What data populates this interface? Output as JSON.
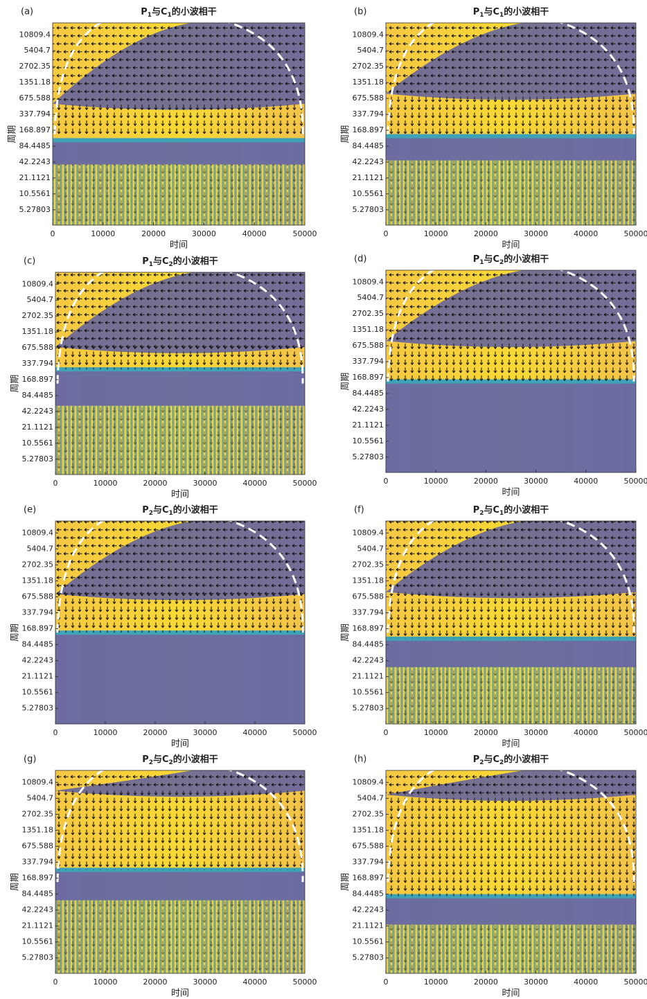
{
  "chart_data": [
    {
      "type": "wavelet_coherence",
      "panel_label": "(a)",
      "title": [
        "P",
        "1",
        "与C",
        "1",
        "的小波相干"
      ],
      "xlabel": "时间",
      "ylabel": "周期",
      "xlim": [
        0,
        50000
      ],
      "xticks": [
        0,
        10000,
        20000,
        30000,
        40000,
        50000
      ],
      "ylim": [
        2.7,
        18200
      ],
      "yscale": "log",
      "yticks": [
        10809.4,
        5404.7,
        2702.35,
        1351.18,
        675.588,
        337.794,
        168.897,
        84.4485,
        42.2243,
        21.1121,
        10.5561,
        5.27803
      ]
    },
    {
      "type": "wavelet_coherence",
      "panel_label": "(b)",
      "title": [
        "P",
        "1",
        "与C",
        "1",
        "的小波相干"
      ],
      "xlabel": "时间",
      "ylabel": "周期",
      "xlim": [
        0,
        50000
      ],
      "xticks": [
        0,
        10000,
        20000,
        30000,
        40000,
        50000
      ],
      "ylim": [
        2.7,
        18200
      ],
      "yscale": "log",
      "yticks": [
        10809.4,
        5404.7,
        2702.35,
        1351.18,
        675.588,
        337.794,
        168.897,
        84.4485,
        42.2243,
        21.1121,
        10.5561,
        5.27803
      ]
    },
    {
      "type": "wavelet_coherence",
      "panel_label": "(c)",
      "title": [
        "P",
        "1",
        "与C",
        "2",
        "的小波相干"
      ],
      "xlabel": "时间",
      "ylabel": "周期",
      "xlim": [
        0,
        50000
      ],
      "xticks": [
        0,
        10000,
        20000,
        30000,
        40000,
        50000
      ],
      "ylim": [
        2.7,
        18200
      ],
      "yscale": "log",
      "yticks": [
        10809.4,
        5404.7,
        2702.35,
        1351.18,
        675.588,
        337.794,
        168.897,
        84.4485,
        42.2243,
        21.1121,
        10.5561,
        5.27803
      ]
    },
    {
      "type": "wavelet_coherence",
      "panel_label": "(d)",
      "title": [
        "P",
        "1",
        "与C",
        "2",
        "的小波相干"
      ],
      "xlabel": "时间",
      "ylabel": "周期",
      "xlim": [
        0,
        50000
      ],
      "xticks": [
        0,
        10000,
        20000,
        30000,
        40000,
        50000
      ],
      "ylim": [
        2.7,
        18200
      ],
      "yscale": "log",
      "yticks": [
        10809.4,
        5404.7,
        2702.35,
        1351.18,
        675.588,
        337.794,
        168.897,
        84.4485,
        42.2243,
        21.1121,
        10.5561,
        5.27803
      ]
    },
    {
      "type": "wavelet_coherence",
      "panel_label": "(e)",
      "title": [
        "P",
        "2",
        "与C",
        "1",
        "的小波相干"
      ],
      "xlabel": "时间",
      "ylabel": "周期",
      "xlim": [
        0,
        50000
      ],
      "xticks": [
        0,
        10000,
        20000,
        30000,
        40000,
        50000
      ],
      "ylim": [
        2.7,
        18200
      ],
      "yscale": "log",
      "yticks": [
        10809.4,
        5404.7,
        2702.35,
        1351.18,
        675.588,
        337.794,
        168.897,
        84.4485,
        42.2243,
        21.1121,
        10.5561,
        5.27803
      ]
    },
    {
      "type": "wavelet_coherence",
      "panel_label": "(f)",
      "title": [
        "P",
        "2",
        "与C",
        "1",
        "的小波相干"
      ],
      "xlabel": "时间",
      "ylabel": "周期",
      "xlim": [
        0,
        50000
      ],
      "xticks": [
        0,
        10000,
        20000,
        30000,
        40000,
        50000
      ],
      "ylim": [
        2.7,
        18200
      ],
      "yscale": "log",
      "yticks": [
        10809.4,
        5404.7,
        2702.35,
        1351.18,
        675.588,
        337.794,
        168.897,
        84.4485,
        42.2243,
        21.1121,
        10.5561,
        5.27803
      ]
    },
    {
      "type": "wavelet_coherence",
      "panel_label": "(g)",
      "title": [
        "P",
        "2",
        "与C",
        "2",
        "的小波相干"
      ],
      "xlabel": "时间",
      "ylabel": "周期",
      "xlim": [
        0,
        50000
      ],
      "xticks": [
        0,
        10000,
        20000,
        30000,
        40000,
        50000
      ],
      "ylim": [
        2.7,
        18200
      ],
      "yscale": "log",
      "yticks": [
        10809.4,
        5404.7,
        2702.35,
        1351.18,
        675.588,
        337.794,
        168.897,
        84.4485,
        42.2243,
        21.1121,
        10.5561,
        5.27803
      ]
    },
    {
      "type": "wavelet_coherence",
      "panel_label": "(h)",
      "title": [
        "P",
        "2",
        "与C",
        "2",
        "的小波相干"
      ],
      "xlabel": "时间",
      "ylabel": "周期",
      "xlim": [
        0,
        50000
      ],
      "xticks": [
        0,
        10000,
        20000,
        30000,
        40000,
        50000
      ],
      "ylim": [
        2.7,
        18200
      ],
      "yscale": "log",
      "yticks": [
        10809.4,
        5404.7,
        2702.35,
        1351.18,
        675.588,
        337.794,
        168.897,
        84.4485,
        42.2243,
        21.1121,
        10.5561,
        5.27803
      ]
    }
  ]
}
